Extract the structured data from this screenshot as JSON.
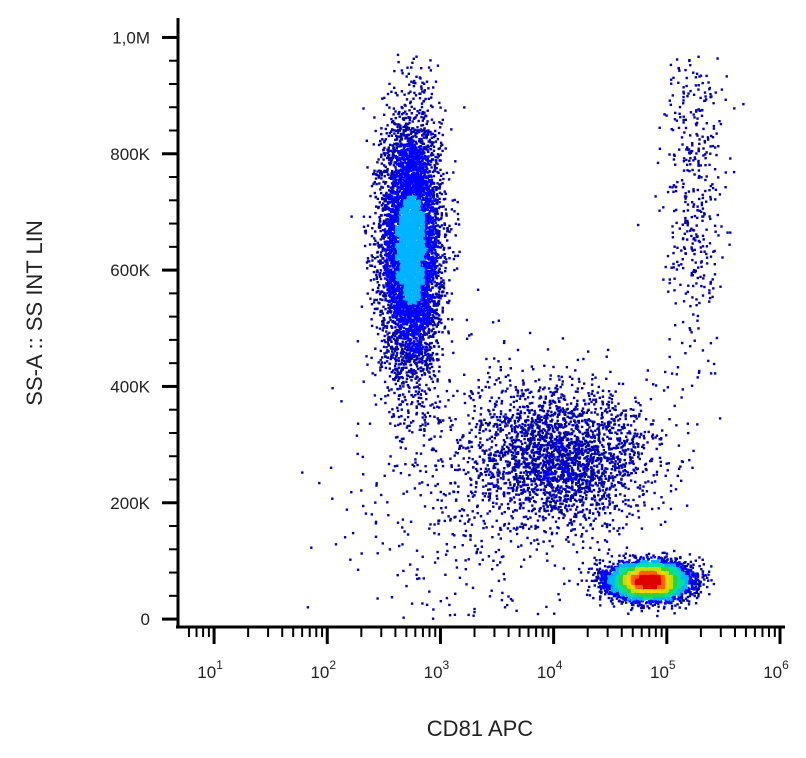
{
  "chart_data": {
    "type": "scatter",
    "plot_style": "flow cytometry pseudocolor density dot plot",
    "xlabel": "CD81 APC",
    "ylabel": "SS-A :: SS INT LIN",
    "x_scale": "log",
    "xlim": [
      5,
      1000000
    ],
    "ylim": [
      -5000,
      1030000
    ],
    "x_ticks": [
      10,
      100,
      1000,
      10000,
      100000,
      1000000
    ],
    "x_tick_labels": [
      {
        "base": "10",
        "exp": "1"
      },
      {
        "base": "10",
        "exp": "2"
      },
      {
        "base": "10",
        "exp": "3"
      },
      {
        "base": "10",
        "exp": "4"
      },
      {
        "base": "10",
        "exp": "5"
      },
      {
        "base": "10",
        "exp": "6"
      }
    ],
    "y_ticks": [
      0,
      200000,
      400000,
      600000,
      800000,
      1000000
    ],
    "y_tick_labels": [
      "0",
      "200K",
      "400K",
      "600K",
      "800K",
      "1,0M"
    ],
    "grid": false,
    "legend": "none",
    "colormap": [
      "#0000b4",
      "#0000ff",
      "#00b4ff",
      "#00e0a0",
      "#30d040",
      "#c0e000",
      "#ffd000",
      "#ff6000",
      "#e00000"
    ],
    "populations": [
      {
        "x_center": 550,
        "y_center": 640000,
        "x_spread_log": 0.13,
        "y_spread": 110000,
        "density": "high"
      },
      {
        "x_center": 70000,
        "y_center": 65000,
        "x_spread_log": 0.17,
        "y_spread": 15000,
        "density": "high"
      },
      {
        "x_center": 12000,
        "y_center": 280000,
        "x_spread_log": 0.4,
        "y_spread": 60000,
        "density": "medium"
      },
      {
        "x_center": 170000,
        "y_center": 750000,
        "x_spread_log": 0.13,
        "y_spread": 160000,
        "density": "low"
      },
      {
        "x_center": 1500,
        "y_center": 200000,
        "x_spread_log": 0.5,
        "y_spread": 150000,
        "density": "low"
      }
    ]
  }
}
